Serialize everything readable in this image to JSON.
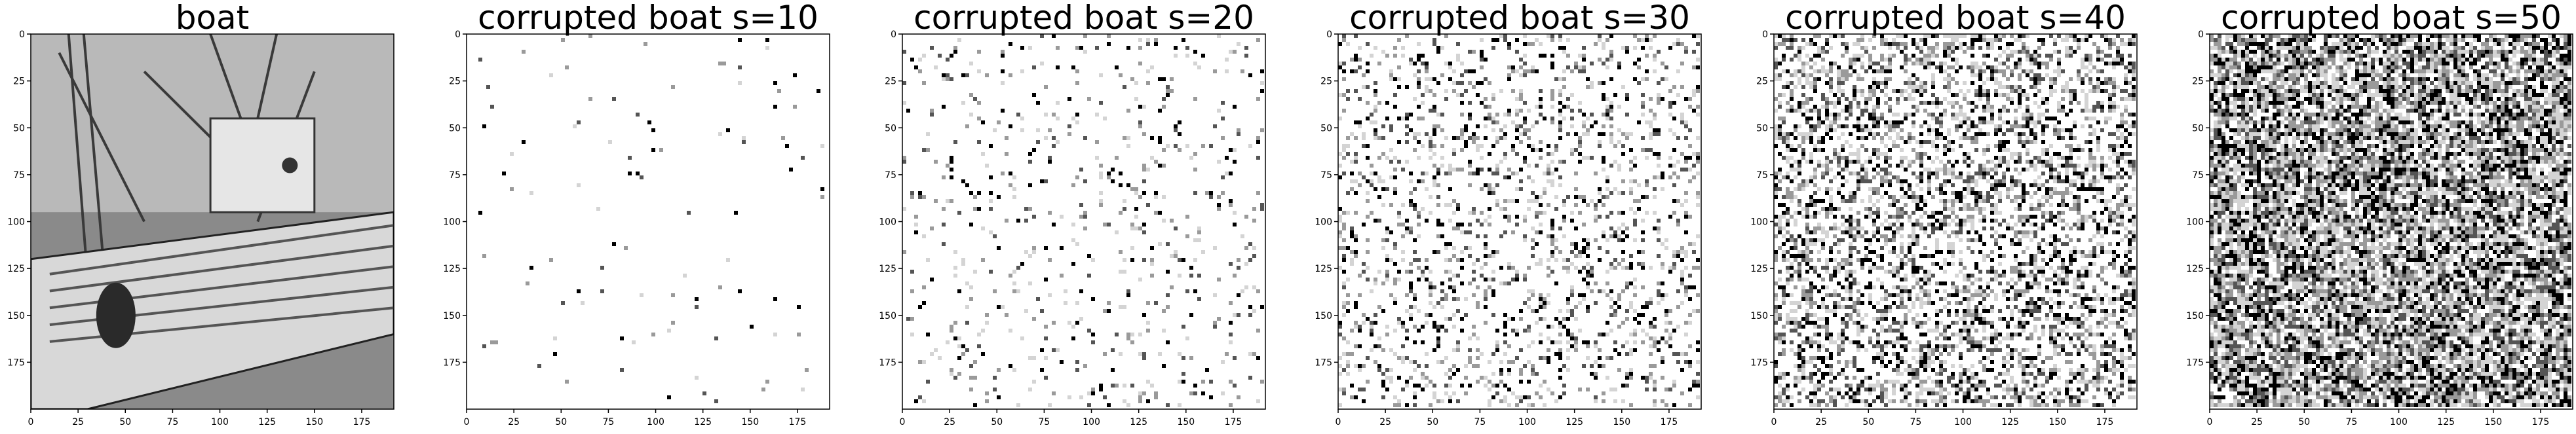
{
  "panels": [
    {
      "title": "boat",
      "kind": "original",
      "noise": 0
    },
    {
      "title": "corrupted boat s=10",
      "kind": "corrupted",
      "noise": 10
    },
    {
      "title": "corrupted boat s=20",
      "kind": "corrupted",
      "noise": 20
    },
    {
      "title": "corrupted boat s=30",
      "kind": "corrupted",
      "noise": 30
    },
    {
      "title": "corrupted boat s=40",
      "kind": "corrupted",
      "noise": 40
    },
    {
      "title": "corrupted boat s=50",
      "kind": "corrupted",
      "noise": 50
    }
  ],
  "axes": {
    "x_ticks": [
      0,
      25,
      50,
      75,
      100,
      125,
      150,
      175
    ],
    "y_ticks": [
      0,
      25,
      50,
      75,
      100,
      125,
      150,
      175
    ],
    "x_range": [
      0,
      192
    ],
    "y_range": [
      0,
      200
    ]
  },
  "colors": {
    "frame": "#000000",
    "tick_text": "#000000",
    "background": "#ffffff"
  }
}
